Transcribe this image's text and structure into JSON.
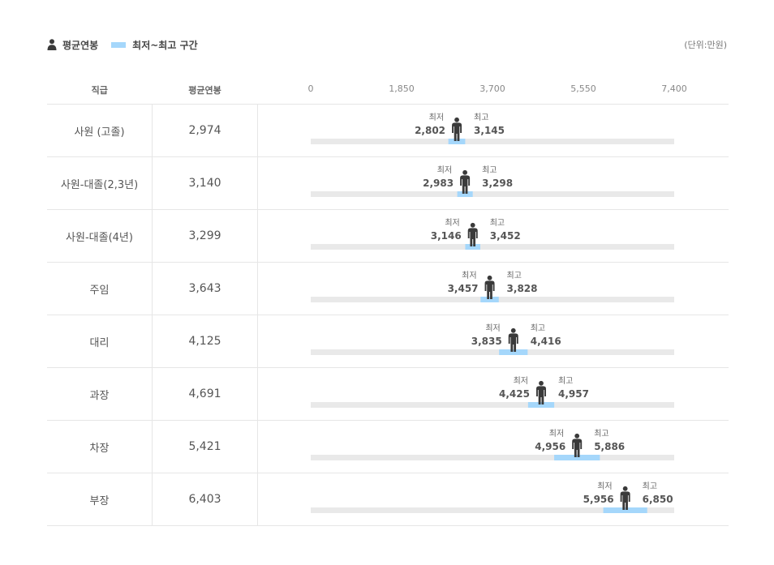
{
  "legend": {
    "avg_label": "평균연봉",
    "range_label": "최저~최고 구간",
    "unit": "(단위:만원)"
  },
  "table": {
    "col_rank": "직급",
    "col_avg": "평균연봉"
  },
  "labels": {
    "min": "최저",
    "max": "최고"
  },
  "colors": {
    "range": "#a5d7fb",
    "track": "#e9e9e9",
    "person": "#3a3a3a"
  },
  "chart_data": {
    "type": "bar",
    "subtype": "range-with-marker",
    "xlim": [
      0,
      7400
    ],
    "ticks": [
      "0",
      "1,850",
      "3,700",
      "5,550",
      "7,400"
    ],
    "tick_values": [
      0,
      1850,
      3700,
      5550,
      7400
    ],
    "rows": [
      {
        "rank": "사원 (고졸)",
        "avg": 2974,
        "avg_text": "2,974",
        "min": 2802,
        "min_text": "2,802",
        "max": 3145,
        "max_text": "3,145"
      },
      {
        "rank": "사원-대졸(2,3년)",
        "avg": 3140,
        "avg_text": "3,140",
        "min": 2983,
        "min_text": "2,983",
        "max": 3298,
        "max_text": "3,298"
      },
      {
        "rank": "사원-대졸(4년)",
        "avg": 3299,
        "avg_text": "3,299",
        "min": 3146,
        "min_text": "3,146",
        "max": 3452,
        "max_text": "3,452"
      },
      {
        "rank": "주임",
        "avg": 3643,
        "avg_text": "3,643",
        "min": 3457,
        "min_text": "3,457",
        "max": 3828,
        "max_text": "3,828"
      },
      {
        "rank": "대리",
        "avg": 4125,
        "avg_text": "4,125",
        "min": 3835,
        "min_text": "3,835",
        "max": 4416,
        "max_text": "4,416"
      },
      {
        "rank": "과장",
        "avg": 4691,
        "avg_text": "4,691",
        "min": 4425,
        "min_text": "4,425",
        "max": 4957,
        "max_text": "4,957"
      },
      {
        "rank": "차장",
        "avg": 5421,
        "avg_text": "5,421",
        "min": 4956,
        "min_text": "4,956",
        "max": 5886,
        "max_text": "5,886"
      },
      {
        "rank": "부장",
        "avg": 6403,
        "avg_text": "6,403",
        "min": 5956,
        "min_text": "5,956",
        "max": 6850,
        "max_text": "6,850"
      }
    ]
  }
}
